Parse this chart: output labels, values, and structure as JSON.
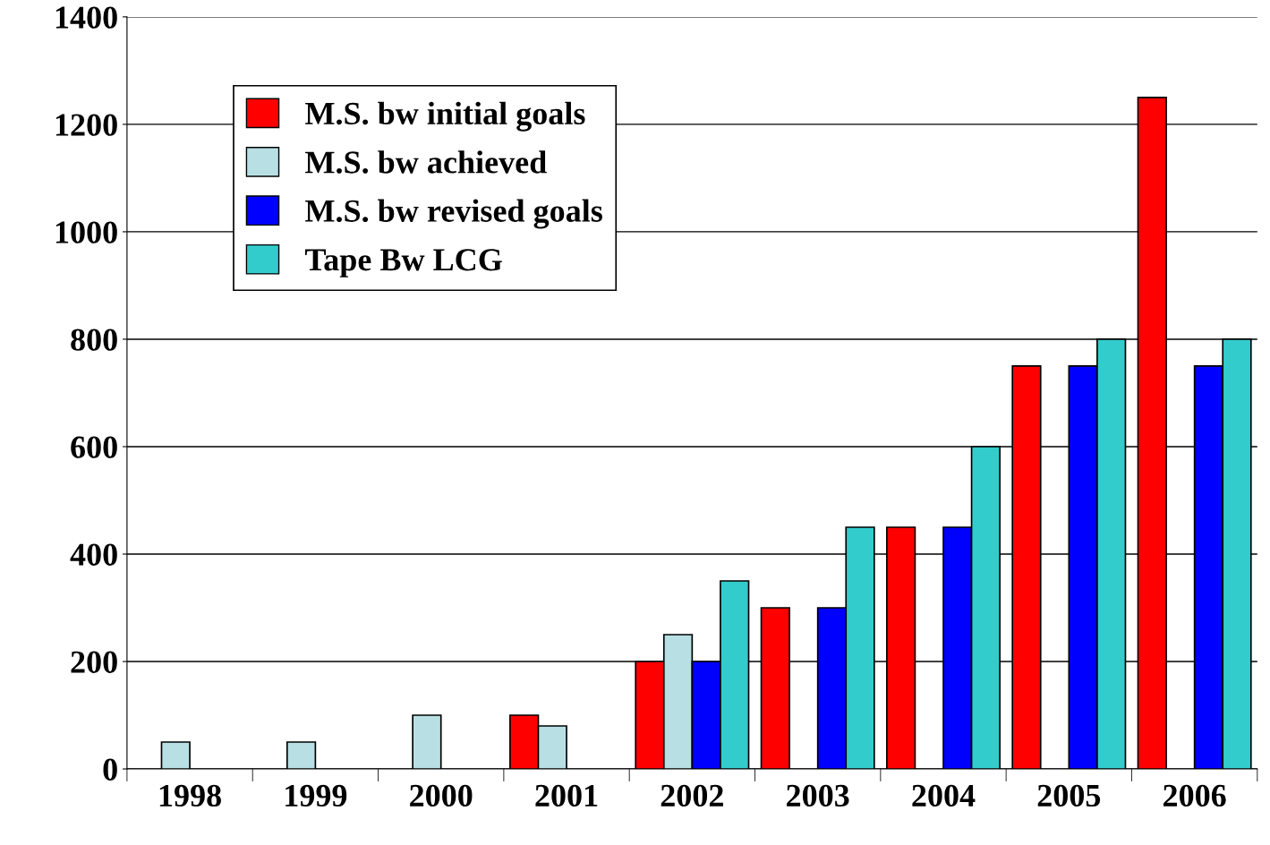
{
  "chart_data": {
    "type": "bar",
    "categories": [
      "1998",
      "1999",
      "2000",
      "2001",
      "2002",
      "2003",
      "2004",
      "2005",
      "2006"
    ],
    "series": [
      {
        "name": "M.S. bw initial goals",
        "color": "#ff0000",
        "values": [
          null,
          null,
          null,
          100,
          200,
          300,
          450,
          750,
          1250
        ]
      },
      {
        "name": "M.S. bw achieved",
        "color": "#b8e0e4",
        "values": [
          50,
          50,
          100,
          80,
          250,
          null,
          null,
          null,
          null
        ]
      },
      {
        "name": "M.S. bw revised goals",
        "color": "#0000ff",
        "values": [
          null,
          null,
          null,
          null,
          200,
          300,
          450,
          750,
          750
        ]
      },
      {
        "name": "Tape Bw LCG",
        "color": "#33cccc",
        "values": [
          null,
          null,
          null,
          null,
          350,
          450,
          600,
          800,
          800
        ]
      }
    ],
    "ylim": [
      0,
      1400
    ],
    "yticks": [
      0,
      200,
      400,
      600,
      800,
      1000,
      1200,
      1400
    ],
    "grid": "y",
    "legend": "top left"
  }
}
